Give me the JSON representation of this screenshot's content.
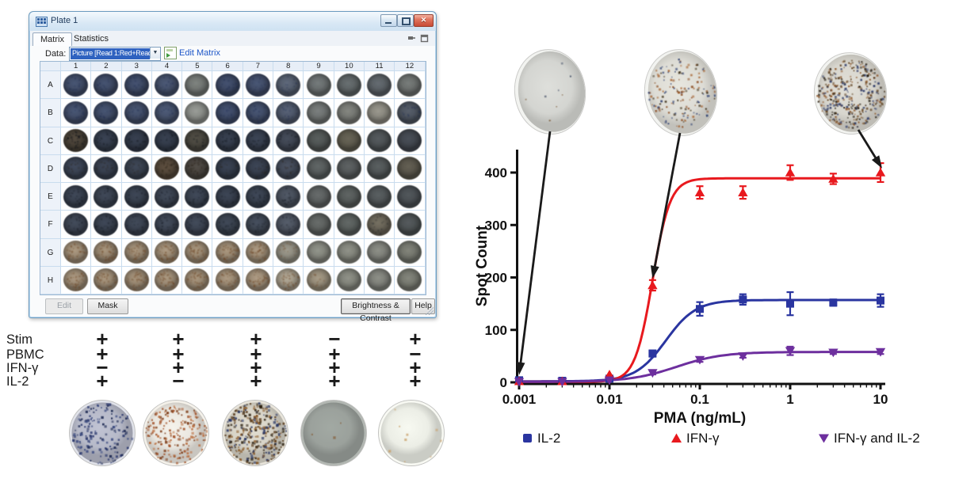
{
  "window": {
    "title": "Plate 1",
    "tabs": [
      "Matrix",
      "Statistics"
    ],
    "active_tab": "Matrix",
    "data_label": "Data:",
    "data_value": "Picture [Read 1:Red+Read 1:Green+",
    "edit_matrix": "Edit Matrix",
    "buttons": {
      "edit": "Edit",
      "mask": "Mask",
      "brightness": "Brightness & Contrast",
      "help": "Help"
    },
    "plate": {
      "columns": [
        "1",
        "2",
        "3",
        "4",
        "5",
        "6",
        "7",
        "8",
        "9",
        "10",
        "11",
        "12"
      ],
      "rows": [
        "A",
        "B",
        "C",
        "D",
        "E",
        "F",
        "G",
        "H"
      ],
      "well_colors": [
        [
          "#414d68",
          "#3f4b66",
          "#3e4a65",
          "#44506a",
          "#727673",
          "#3d4964",
          "#424e69",
          "#555e6e",
          "#696e6f",
          "#5e6466",
          "#5b6166",
          "#6c706e"
        ],
        [
          "#424e69",
          "#404c67",
          "#424e68",
          "#46526c",
          "#8a8d88",
          "#3e4a66",
          "#414d68",
          "#4f586b",
          "#6f7372",
          "#777974",
          "#8b8980",
          "#4e5560"
        ],
        [
          "#4a4238",
          "#343c4b",
          "#323a49",
          "#333b4a",
          "#4a473f",
          "#333b4a",
          "#363e4d",
          "#3f4552",
          "#505554",
          "#5e5b4e",
          "#4d5255",
          "#42474f"
        ],
        [
          "#3a4252",
          "#373f4e",
          "#39414f",
          "#55483a",
          "#4a4540",
          "#343c4b",
          "#373f4e",
          "#434a58",
          "#575c5c",
          "#55595a",
          "#515657",
          "#5a564b"
        ],
        [
          "#39414f",
          "#3a4250",
          "#38404e",
          "#3b4351",
          "#3a4250",
          "#373f4d",
          "#39414f",
          "#49505c",
          "#5d6161",
          "#565b5a",
          "#515658",
          "#4a4f53"
        ],
        [
          "#3c4452",
          "#39414f",
          "#3b4351",
          "#3d4553",
          "#3c4452",
          "#3a424f",
          "#3f4754",
          "#4d5460",
          "#5e6260",
          "#595e5c",
          "#6a6558",
          "#4d5254"
        ],
        [
          "#9b8a74",
          "#978670",
          "#998872",
          "#9c8b75",
          "#998872",
          "#9a8973",
          "#9d8c76",
          "#8f8c80",
          "#84867d",
          "#82847b",
          "#7f817a",
          "#75776e"
        ],
        [
          "#9c8b75",
          "#9a8973",
          "#988771",
          "#9b8a74",
          "#998872",
          "#9c8b75",
          "#9e8d77",
          "#a39a89",
          "#968c79",
          "#82847b",
          "#7f817a",
          "#777970"
        ]
      ],
      "well_speckle": [
        [
          1,
          1,
          1,
          1,
          0,
          1,
          1,
          1,
          0,
          0,
          0,
          0
        ],
        [
          1,
          1,
          1,
          1,
          0,
          1,
          1,
          1,
          0,
          0,
          0,
          1
        ],
        [
          2,
          1,
          1,
          1,
          1,
          1,
          1,
          1,
          0,
          0,
          0,
          0
        ],
        [
          1,
          1,
          1,
          2,
          2,
          1,
          1,
          1,
          0,
          0,
          0,
          0
        ],
        [
          1,
          1,
          1,
          1,
          1,
          1,
          1,
          1,
          0,
          0,
          0,
          0
        ],
        [
          1,
          1,
          1,
          1,
          1,
          1,
          1,
          1,
          0,
          0,
          1,
          0
        ],
        [
          2,
          2,
          2,
          2,
          2,
          2,
          2,
          1,
          0,
          0,
          0,
          0
        ],
        [
          2,
          2,
          2,
          2,
          2,
          2,
          2,
          2,
          1,
          0,
          0,
          0
        ]
      ],
      "speckle_colors": [
        "#1c2a50",
        "#1c2a50",
        "#0c1016",
        "#2a2218",
        "#10141c",
        "#10141c",
        "#6b4322",
        "#6b4322"
      ]
    }
  },
  "conditions": {
    "row_labels": [
      "Stim",
      "PBMC",
      "IFN-γ",
      "IL-2"
    ],
    "matrix": [
      [
        "+",
        "+",
        "+",
        "−",
        "+"
      ],
      [
        "+",
        "+",
        "+",
        "+",
        "−"
      ],
      [
        "−",
        "+",
        "+",
        "+",
        "+"
      ],
      [
        "+",
        "−",
        "+",
        "+",
        "+"
      ]
    ],
    "wells": [
      {
        "bg": "#b7bac9",
        "ring": "#e0e2e9",
        "spot_colors": [
          "#26346b",
          "#18244e",
          "#3a4a80"
        ],
        "spots": 150
      },
      {
        "bg": "#eae7e0",
        "ring": "#f4f1ea",
        "spot_colors": [
          "#a04e24",
          "#7c3a16",
          "#b86a3a"
        ],
        "spots": 180
      },
      {
        "bg": "#d8d4c8",
        "ring": "#e8e4da",
        "spot_colors": [
          "#57391b",
          "#243262",
          "#2d2212",
          "#8a5a28"
        ],
        "spots": 320
      },
      {
        "bg": "#9ba19c",
        "ring": "#b2b7b2",
        "spot_colors": [
          "#8a6a4a"
        ],
        "spots": 3
      },
      {
        "bg": "#eceee6",
        "ring": "#f8f9f3",
        "spot_colors": [
          "#c9a06a"
        ],
        "spots": 9
      }
    ]
  },
  "chart_data": {
    "type": "scatter",
    "title": "",
    "xlabel": "PMA (ng/mL)",
    "ylabel": "Spot Count",
    "x_scale": "log",
    "x": [
      0.001,
      0.003,
      0.01,
      0.03,
      0.1,
      0.3,
      1,
      3,
      10
    ],
    "x_ticks": [
      0.001,
      0.01,
      0.1,
      1,
      10
    ],
    "x_tick_labels": [
      "0.001",
      "0.01",
      "0.1",
      "1",
      "10"
    ],
    "y_ticks": [
      0,
      100,
      200,
      300,
      400
    ],
    "ylim": [
      0,
      445
    ],
    "grid": false,
    "legend_position": "bottom",
    "series": [
      {
        "name": "IL-2",
        "color": "#2a35a0",
        "marker": "square",
        "values": [
          4,
          3,
          7,
          55,
          140,
          158,
          150,
          152,
          156
        ],
        "errors": [
          0,
          0,
          0,
          6,
          13,
          10,
          22,
          6,
          12
        ],
        "curve": {
          "bottom": 2,
          "top": 157,
          "ec50": 0.042,
          "hill": 2.6
        }
      },
      {
        "name": "IFN-γ",
        "color": "#e8191e",
        "marker": "triangle-up",
        "values": [
          2,
          2,
          15,
          185,
          362,
          362,
          400,
          388,
          400
        ],
        "errors": [
          0,
          0,
          0,
          10,
          12,
          12,
          14,
          10,
          18
        ],
        "curve": {
          "bottom": 1,
          "top": 389,
          "ec50": 0.03,
          "hill": 4.5
        }
      },
      {
        "name": "IFN-γ and IL-2",
        "color": "#6d2f9e",
        "marker": "triangle-down",
        "values": [
          1,
          1,
          4,
          18,
          43,
          50,
          60,
          57,
          58
        ],
        "errors": [
          0,
          0,
          0,
          3,
          4,
          3,
          8,
          3,
          4
        ],
        "curve": {
          "bottom": 1,
          "top": 58,
          "ec50": 0.055,
          "hill": 1.7
        }
      }
    ],
    "annotations": {
      "callout_wells": [
        {
          "bg": "#d4d5d1",
          "spot_colors": [
            "#445066",
            "#7a5a36"
          ],
          "spots": 8
        },
        {
          "bg": "#dddcd5",
          "spot_colors": [
            "#8a4a1e",
            "#2a3c6e",
            "#3a2c14",
            "#a5622e"
          ],
          "spots": 155
        },
        {
          "bg": "#d8d6ce",
          "spot_colors": [
            "#5a3c1a",
            "#243262",
            "#211a10",
            "#8a5224"
          ],
          "spots": 340
        }
      ],
      "arrow_targets": [
        {
          "x": 0.001,
          "y": 14
        },
        {
          "x": 0.03,
          "y": 198
        },
        {
          "x": 10,
          "y": 408
        }
      ]
    }
  }
}
